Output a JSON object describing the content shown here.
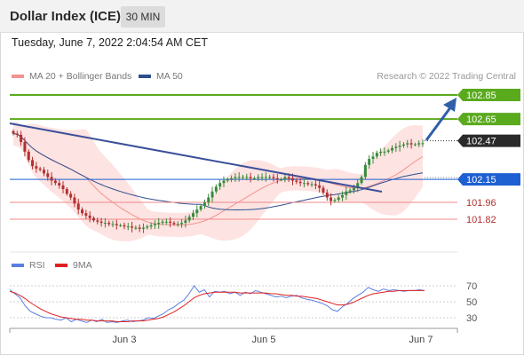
{
  "header": {
    "title": "Dollar Index (ICE)",
    "timeframe": "30 MIN"
  },
  "timestamp": "Tuesday, June 7, 2022 2:04:54 AM CET",
  "legend": {
    "ma20_label": "MA 20 + Bollinger Bands",
    "ma50_label": "MA 50"
  },
  "copyright": "Research © 2022 Trading Central",
  "colors": {
    "ma20": "#f4928e",
    "ma50": "#2f4f8f",
    "bollinger_fill": "#fde3e1",
    "candle_up": "#3a8a3a",
    "candle_down": "#b23030",
    "trendline": "#3b4f9a",
    "resistance": "#5aaa1e",
    "support_blue": "#1e5fd1",
    "support_red": "#f08a8a",
    "current_price_bg": "#2a2a2a",
    "arrow": "#2f5fa8",
    "rsi_line": "#5b7fe0",
    "rsi_ma": "#e02020"
  },
  "chart_data": [
    {
      "type": "candlestick",
      "title": "Dollar Index (ICE)",
      "interval": "30 MIN",
      "ylim": [
        101.72,
        102.9
      ],
      "x_ticks": [
        "Jun 3",
        "Jun 5",
        "Jun 7"
      ],
      "price_levels": [
        {
          "value": 102.85,
          "label": "102.85",
          "kind": "resistance"
        },
        {
          "value": 102.65,
          "label": "102.65",
          "kind": "resistance"
        },
        {
          "value": 102.47,
          "label": "102.47",
          "kind": "current"
        },
        {
          "value": 102.15,
          "label": "102.15",
          "kind": "pivot"
        },
        {
          "value": 101.96,
          "label": "101.96",
          "kind": "support"
        },
        {
          "value": 101.82,
          "label": "101.82",
          "kind": "support"
        }
      ],
      "close": [
        102.53,
        102.52,
        102.46,
        102.38,
        102.31,
        102.26,
        102.24,
        102.23,
        102.2,
        102.17,
        102.14,
        102.12,
        102.1,
        102.07,
        102.03,
        102.0,
        101.95,
        101.9,
        101.87,
        101.85,
        101.83,
        101.81,
        101.8,
        101.79,
        101.79,
        101.78,
        101.78,
        101.77,
        101.77,
        101.76,
        101.76,
        101.75,
        101.75,
        101.74,
        101.75,
        101.76,
        101.77,
        101.78,
        101.79,
        101.8,
        101.8,
        101.79,
        101.78,
        101.78,
        101.79,
        101.81,
        101.84,
        101.87,
        101.9,
        101.93,
        101.96,
        102.0,
        102.05,
        102.09,
        102.12,
        102.14,
        102.15,
        102.16,
        102.17,
        102.17,
        102.17,
        102.17,
        102.16,
        102.16,
        102.17,
        102.17,
        102.17,
        102.17,
        102.16,
        102.15,
        102.15,
        102.17,
        102.16,
        102.14,
        102.13,
        102.12,
        102.12,
        102.11,
        102.11,
        102.1,
        102.08,
        102.04,
        102.0,
        101.97,
        101.98,
        102.0,
        102.02,
        102.05,
        102.06,
        102.08,
        102.12,
        102.17,
        102.27,
        102.32,
        102.34,
        102.37,
        102.38,
        102.38,
        102.39,
        102.41,
        102.42,
        102.43,
        102.44,
        102.45,
        102.44,
        102.44,
        102.45,
        102.45
      ],
      "overlays": [
        "MA 20 + Bollinger Bands",
        "MA 50",
        "trendline"
      ]
    },
    {
      "type": "line",
      "title": "RSI",
      "series": [
        {
          "name": "RSI",
          "values": [
            65,
            60,
            55,
            45,
            38,
            35,
            32,
            30,
            30,
            28,
            27,
            30,
            25,
            28,
            26,
            24,
            27,
            25,
            28,
            24,
            25,
            24,
            26,
            27,
            25,
            26,
            27,
            30,
            29,
            32,
            35,
            40,
            43,
            48,
            52,
            60,
            70,
            62,
            65,
            56,
            63,
            62,
            63,
            60,
            62,
            58,
            62,
            60,
            64,
            62,
            60,
            58,
            56,
            57,
            55,
            57,
            58,
            55,
            53,
            52,
            50,
            48,
            45,
            40,
            38,
            44,
            48,
            54,
            58,
            62,
            68,
            65,
            63,
            66,
            64,
            65,
            64,
            63,
            64,
            64,
            65,
            64
          ]
        },
        {
          "name": "9MA",
          "values": [
            63,
            61,
            58,
            54,
            49,
            45,
            41,
            38,
            35,
            33,
            31,
            30,
            29,
            28,
            28,
            27,
            27,
            26,
            26,
            26,
            26,
            25,
            25,
            25,
            26,
            26,
            26,
            27,
            28,
            29,
            31,
            34,
            37,
            41,
            45,
            50,
            55,
            58,
            60,
            61,
            62,
            62,
            62,
            62,
            62,
            61,
            61,
            61,
            61,
            61,
            61,
            60,
            60,
            59,
            58,
            58,
            57,
            57,
            56,
            55,
            54,
            52,
            50,
            48,
            46,
            46,
            47,
            49,
            52,
            55,
            58,
            60,
            61,
            62,
            63,
            63,
            64,
            64,
            64,
            64,
            64,
            64
          ]
        }
      ],
      "y_ticks": [
        "70",
        "50",
        "30"
      ],
      "ylim": [
        20,
        80
      ],
      "x_ticks": [
        "Jun 3",
        "Jun 5",
        "Jun 7"
      ]
    }
  ],
  "rsi_legend": {
    "rsi_label": "RSI",
    "ma_label": "9MA"
  }
}
